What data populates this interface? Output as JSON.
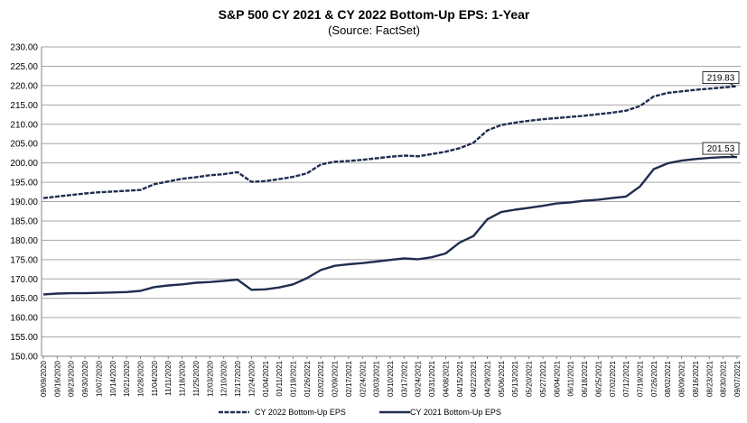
{
  "chart_data": {
    "type": "line",
    "title": "S&P 500 CY 2021 & CY 2022 Bottom-Up  EPS: 1-Year",
    "subtitle": "(Source: FactSet)",
    "ylim": [
      150,
      230
    ],
    "yticks": [
      "150.00",
      "155.00",
      "160.00",
      "165.00",
      "170.00",
      "175.00",
      "180.00",
      "185.00",
      "190.00",
      "195.00",
      "200.00",
      "205.00",
      "210.00",
      "215.00",
      "220.00",
      "225.00",
      "230.00"
    ],
    "x": [
      "09/09/2020",
      "09/16/2020",
      "09/23/2020",
      "09/30/2020",
      "10/07/2020",
      "10/14/2020",
      "10/21/2020",
      "10/28/2020",
      "11/04/2020",
      "11/11/2020",
      "11/18/2020",
      "11/25/2020",
      "12/03/2020",
      "12/10/2020",
      "12/17/2020",
      "12/24/2020",
      "01/04/2021",
      "01/11/2021",
      "01/19/2021",
      "01/26/2021",
      "02/02/2021",
      "02/09/2021",
      "02/17/2021",
      "02/24/2021",
      "03/03/2021",
      "03/10/2021",
      "03/17/2021",
      "03/24/2021",
      "03/31/2021",
      "04/08/2021",
      "04/15/2021",
      "04/22/2021",
      "04/29/2021",
      "05/06/2021",
      "05/13/2021",
      "05/20/2021",
      "05/27/2021",
      "06/04/2021",
      "06/11/2021",
      "06/18/2021",
      "06/25/2021",
      "07/02/2021",
      "07/12/2021",
      "07/19/2021",
      "07/26/2021",
      "08/02/2021",
      "08/09/2021",
      "08/16/2021",
      "08/23/2021",
      "08/30/2021",
      "09/07/2021"
    ],
    "grid": true,
    "legend_position": "bottom",
    "series": [
      {
        "name": "CY 2022 Bottom-Up EPS",
        "color": "#1f2d4f",
        "dash": true,
        "end_label": "219.83",
        "values": [
          190.9,
          191.3,
          191.7,
          192.1,
          192.4,
          192.6,
          192.8,
          193.0,
          194.5,
          195.2,
          195.9,
          196.3,
          196.8,
          197.1,
          197.6,
          195.1,
          195.3,
          195.8,
          196.4,
          197.3,
          199.6,
          200.3,
          200.5,
          200.8,
          201.2,
          201.6,
          201.9,
          201.7,
          202.3,
          202.9,
          203.8,
          205.2,
          208.4,
          209.8,
          210.4,
          210.9,
          211.3,
          211.6,
          211.9,
          212.2,
          212.6,
          213.0,
          213.5,
          214.7,
          217.2,
          218.1,
          218.5,
          218.9,
          219.2,
          219.5,
          219.83
        ]
      },
      {
        "name": "CY 2021 Bottom-Up EPS",
        "color": "#1f2d4f",
        "dash": false,
        "end_label": "201.53",
        "values": [
          166.0,
          166.2,
          166.3,
          166.3,
          166.4,
          166.5,
          166.6,
          166.9,
          167.9,
          168.3,
          168.6,
          169.0,
          169.2,
          169.5,
          169.8,
          167.2,
          167.3,
          167.8,
          168.6,
          170.2,
          172.3,
          173.4,
          173.8,
          174.1,
          174.5,
          174.9,
          175.3,
          175.1,
          175.6,
          176.6,
          179.4,
          181.1,
          185.4,
          187.3,
          187.9,
          188.4,
          188.9,
          189.5,
          189.8,
          190.2,
          190.5,
          190.9,
          191.3,
          193.9,
          198.4,
          199.9,
          200.6,
          201.0,
          201.3,
          201.5,
          201.53
        ]
      }
    ]
  }
}
